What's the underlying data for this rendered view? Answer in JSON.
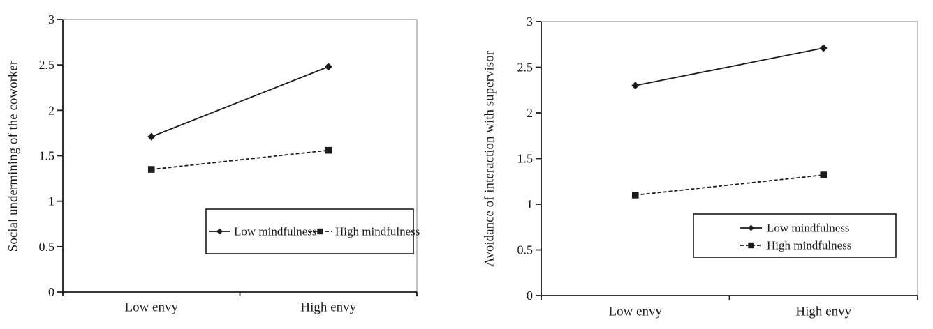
{
  "figure": {
    "background": "#ffffff",
    "description_left_panel": "Social undermining of the coworker",
    "description_right_panel": "Avoidance of interaction with supervisor"
  },
  "colors": {
    "line": "#1c1c1c",
    "text": "#1c1c1c",
    "frame_gray": "#a9a9a9",
    "legend_border": "#1c1c1c",
    "background": "#ffffff"
  },
  "chart_data": [
    {
      "type": "line",
      "title": "",
      "xlabel": "",
      "ylabel": "Social undermining of the coworker",
      "categories": [
        "Low envy",
        "High envy"
      ],
      "ylim": [
        0,
        3
      ],
      "ytick_labels": [
        "0",
        "0.5",
        "1",
        "1.5",
        "2",
        "2.5",
        "3"
      ],
      "grid": false,
      "legend_position": "inside-bottom-right",
      "legend_orientation": "horizontal",
      "series": [
        {
          "name": "Low mindfulness",
          "values": [
            1.71,
            2.48
          ],
          "line_style": "solid",
          "marker": "diamond",
          "color": "#1c1c1c"
        },
        {
          "name": "High mindfulness",
          "values": [
            1.35,
            1.56
          ],
          "line_style": "dashed",
          "marker": "square",
          "color": "#1c1c1c"
        }
      ]
    },
    {
      "type": "line",
      "title": "",
      "xlabel": "",
      "ylabel": "Avoidance of interaction with supervisor",
      "categories": [
        "Low envy",
        "High envy"
      ],
      "ylim": [
        0,
        3
      ],
      "ytick_labels": [
        "0",
        "0.5",
        "1",
        "1.5",
        "2",
        "2.5",
        "3"
      ],
      "grid": false,
      "legend_position": "inside-bottom-right",
      "legend_orientation": "vertical",
      "series": [
        {
          "name": "Low mindfulness",
          "values": [
            2.3,
            2.71
          ],
          "line_style": "solid",
          "marker": "diamond",
          "color": "#1c1c1c"
        },
        {
          "name": "High mindfulness",
          "values": [
            1.1,
            1.32
          ],
          "line_style": "dashed",
          "marker": "square",
          "color": "#1c1c1c"
        }
      ]
    }
  ]
}
